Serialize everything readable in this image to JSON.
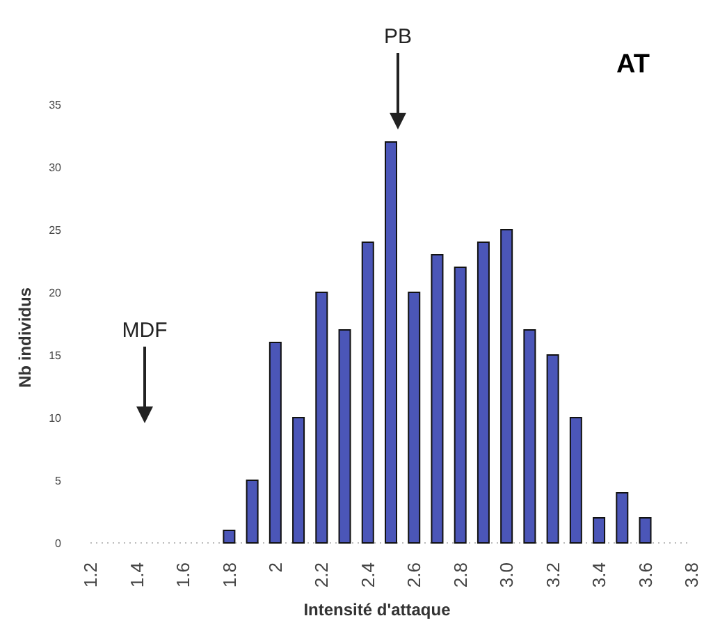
{
  "chart_data": {
    "type": "bar",
    "title": "AT",
    "xlabel": "Intensité d'attaque",
    "ylabel": "Nb individus",
    "x": [
      1.8,
      1.9,
      2.0,
      2.1,
      2.2,
      2.3,
      2.4,
      2.5,
      2.6,
      2.7,
      2.8,
      2.9,
      3.0,
      3.1,
      3.2,
      3.3,
      3.4,
      3.5,
      3.6
    ],
    "values": [
      1,
      5,
      16,
      10,
      20,
      17,
      24,
      32,
      20,
      23,
      22,
      24,
      25,
      17,
      15,
      10,
      2,
      4,
      2
    ],
    "color": "#4b56b8",
    "xlim": [
      1.2,
      3.8
    ],
    "xticks": [
      1.2,
      1.4,
      1.6,
      1.8,
      {
        "value": 2,
        "label": "2"
      },
      2.2,
      2.4,
      2.6,
      2.8,
      {
        "value": 3,
        "label": "3.0"
      },
      3.2,
      3.4,
      3.6,
      3.8
    ],
    "ylim": [
      0,
      35
    ],
    "yticks": [
      0,
      5,
      10,
      15,
      20,
      25,
      30,
      35
    ],
    "grid": false,
    "annotations": [
      "MDF",
      "PB"
    ]
  }
}
